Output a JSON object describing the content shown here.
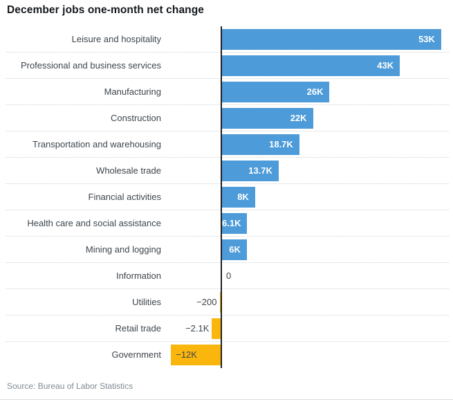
{
  "title": "December jobs one-month net change",
  "source": "Source: Bureau of Labor Statistics",
  "colors": {
    "positive_bar": "#4d9bd8",
    "negative_bar": "#fbb60d",
    "axis_line": "#1f1f1f",
    "gridline": "#d2d2d2",
    "label_text": "#3d454c",
    "value_text_inside_positive": "#ffffff",
    "source_text": "#7e8a92",
    "title_text": "#14181c"
  },
  "chart_data": {
    "type": "bar",
    "orientation": "horizontal",
    "title": "December jobs one-month net change",
    "xlabel": "",
    "ylabel": "",
    "xlim": [
      -13000,
      56000
    ],
    "grid": "dotted horizontal row separators",
    "legend": "none",
    "zero_axis": true,
    "categories": [
      "Leisure and hospitality",
      "Professional and business services",
      "Manufacturing",
      "Construction",
      "Transportation and warehousing",
      "Wholesale trade",
      "Financial activities",
      "Health care and social assistance",
      "Mining and logging",
      "Information",
      "Utilities",
      "Retail trade",
      "Government"
    ],
    "values": [
      53000,
      43000,
      26000,
      22000,
      18700,
      13700,
      8000,
      6100,
      6000,
      0,
      -200,
      -2100,
      -12000
    ],
    "value_labels": [
      "53K",
      "43K",
      "26K",
      "22K",
      "18.7K",
      "13.7K",
      "8K",
      "6.1K",
      "6K",
      "0",
      "−200",
      "−2.1K",
      "−12K"
    ],
    "source": "Source: Bureau of Labor Statistics"
  }
}
